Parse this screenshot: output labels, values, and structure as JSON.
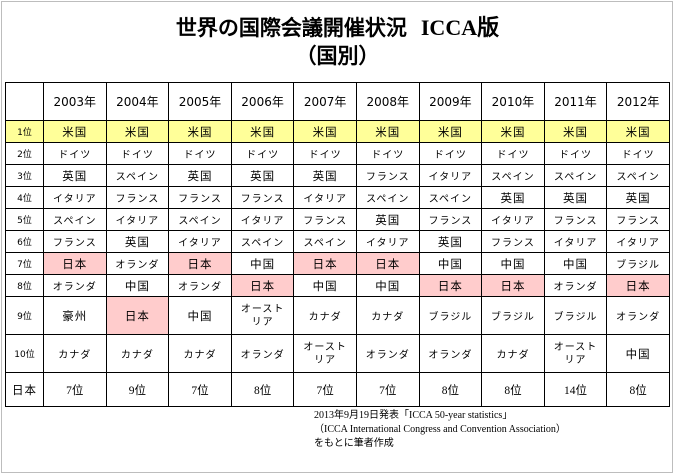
{
  "title": {
    "main": "世界の国際会議開催状況",
    "acronym": "ICCA版"
  },
  "subtitle": "（国別）",
  "table": {
    "years": [
      "2003年",
      "2004年",
      "2005年",
      "2006年",
      "2007年",
      "2008年",
      "2009年",
      "2010年",
      "2011年",
      "2012年"
    ],
    "rank_labels": [
      "1位",
      "2位",
      "3位",
      "4位",
      "5位",
      "6位",
      "7位",
      "8位",
      "9位",
      "10位"
    ],
    "rows": [
      [
        "米国",
        "米国",
        "米国",
        "米国",
        "米国",
        "米国",
        "米国",
        "米国",
        "米国",
        "米国"
      ],
      [
        "ドイツ",
        "ドイツ",
        "ドイツ",
        "ドイツ",
        "ドイツ",
        "ドイツ",
        "ドイツ",
        "ドイツ",
        "ドイツ",
        "ドイツ"
      ],
      [
        "英国",
        "スペイン",
        "英国",
        "英国",
        "英国",
        "フランス",
        "イタリア",
        "スペイン",
        "スペイン",
        "スペイン"
      ],
      [
        "イタリア",
        "フランス",
        "フランス",
        "フランス",
        "イタリア",
        "スペイン",
        "スペイン",
        "英国",
        "英国",
        "英国"
      ],
      [
        "スペイン",
        "イタリア",
        "スペイン",
        "イタリア",
        "フランス",
        "英国",
        "フランス",
        "イタリア",
        "フランス",
        "フランス"
      ],
      [
        "フランス",
        "英国",
        "イタリア",
        "スペイン",
        "スペイン",
        "イタリア",
        "英国",
        "フランス",
        "イタリア",
        "イタリア"
      ],
      [
        "日本",
        "オランダ",
        "日本",
        "中国",
        "日本",
        "日本",
        "中国",
        "中国",
        "中国",
        "ブラジル"
      ],
      [
        "オランダ",
        "中国",
        "オランダ",
        "日本",
        "中国",
        "中国",
        "日本",
        "日本",
        "オランダ",
        "日本"
      ],
      [
        "豪州",
        "日本",
        "中国",
        "オースト\nリア",
        "カナダ",
        "カナダ",
        "ブラジル",
        "ブラジル",
        "ブラジル",
        "オランダ"
      ],
      [
        "カナダ",
        "カナダ",
        "カナダ",
        "オランダ",
        "オースト\nリア",
        "オランダ",
        "オランダ",
        "カナダ",
        "オースト\nリア",
        "中国"
      ]
    ],
    "japan_row": {
      "label": "日本",
      "values": [
        "7位",
        "9位",
        "7位",
        "8位",
        "7位",
        "7位",
        "8位",
        "8位",
        "14位",
        "8位"
      ]
    }
  },
  "source": {
    "line1": "2013年9月19日発表「ICCA 50-year statistics」",
    "line2": "（ICCA  International Congress and Convention Association）",
    "line3": "をもとに筆者作成"
  },
  "colors": {
    "first_place": "#ffff99",
    "japan_highlight": "#ffcccc"
  }
}
